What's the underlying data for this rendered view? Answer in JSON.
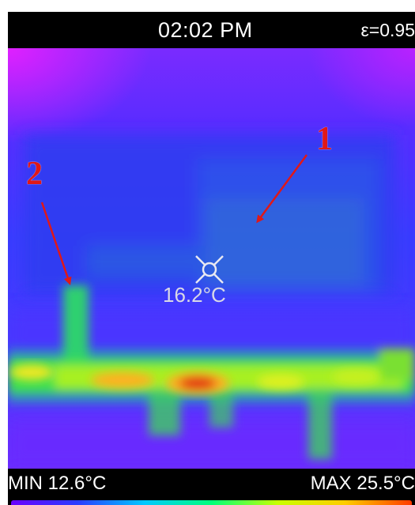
{
  "status_bar": {
    "time": "02:02 PM",
    "emissivity": "ε=0.95"
  },
  "thermal_image": {
    "center_icon": "crosshair-icon",
    "center_temperature": "16.2°C",
    "palette": [
      "#6a00ff",
      "#2a3cff",
      "#00c8ff",
      "#00ff7a",
      "#c8ff00",
      "#ffcc00",
      "#ff3a00"
    ]
  },
  "bottom_bar": {
    "min_label": "MIN 12.6°C",
    "max_label": "MAX 25.5°C"
  },
  "annotations": {
    "marker_1": "1",
    "marker_2": "2",
    "color": "#e01818"
  }
}
